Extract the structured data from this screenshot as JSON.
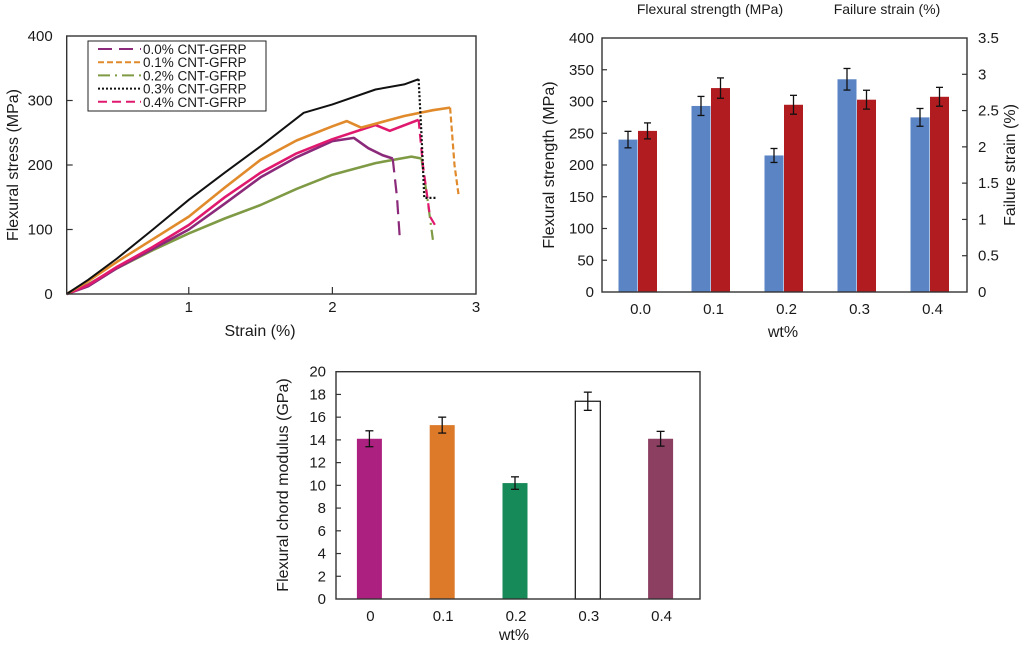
{
  "chart_data": [
    {
      "id": "stress-strain",
      "type": "line",
      "title": "",
      "xlabel": "Strain (%)",
      "ylabel": "Flexural stress (MPa)",
      "xlim": [
        0.15,
        3
      ],
      "ylim": [
        0,
        400
      ],
      "xticks": [
        1,
        2,
        3
      ],
      "xtick_labels": [
        "1",
        "2",
        "3"
      ],
      "yticks": [
        0,
        100,
        200,
        300,
        400
      ],
      "ytick_labels": [
        "0",
        "100",
        "200",
        "300",
        "400"
      ],
      "grid": false,
      "legend_position": "top-left",
      "series": [
        {
          "name": "0.0% CNT-GFRP",
          "color": "#8b2a7a",
          "dash": "long-dash",
          "x": [
            0.15,
            0.3,
            0.5,
            0.75,
            1.0,
            1.25,
            1.5,
            1.75,
            2.0,
            2.15,
            2.25,
            2.35,
            2.42,
            2.45,
            2.47
          ],
          "y": [
            0,
            12,
            40,
            70,
            100,
            140,
            181,
            212,
            237,
            242,
            226,
            215,
            210,
            150,
            84
          ]
        },
        {
          "name": "0.1% CNT-GFRP",
          "color": "#e08a2c",
          "dash": "short-dash",
          "x": [
            0.15,
            0.3,
            0.5,
            0.75,
            1.0,
            1.25,
            1.5,
            1.75,
            2.0,
            2.1,
            2.2,
            2.5,
            2.7,
            2.82,
            2.85,
            2.88
          ],
          "y": [
            0,
            20,
            50,
            85,
            120,
            165,
            208,
            238,
            260,
            268,
            258,
            276,
            285,
            289,
            200,
            151
          ]
        },
        {
          "name": "0.2% CNT-GFRP",
          "color": "#7f9a45",
          "dash": "dash-dot",
          "x": [
            0.15,
            0.3,
            0.5,
            0.75,
            1.0,
            1.25,
            1.5,
            1.75,
            2.0,
            2.3,
            2.55,
            2.62,
            2.66,
            2.7
          ],
          "y": [
            0,
            15,
            40,
            68,
            94,
            117,
            138,
            163,
            185,
            203,
            213,
            210,
            150,
            84
          ]
        },
        {
          "name": "0.3% CNT-GFRP",
          "color": "#111111",
          "dash": "dotted",
          "x": [
            0.15,
            0.3,
            0.5,
            0.75,
            1.0,
            1.25,
            1.5,
            1.8,
            2.0,
            2.3,
            2.5,
            2.6,
            2.62,
            2.64,
            2.73
          ],
          "y": [
            0,
            22,
            55,
            100,
            146,
            188,
            229,
            281,
            294,
            317,
            325,
            333,
            250,
            149,
            149
          ]
        },
        {
          "name": "0.4% CNT-GFRP",
          "color": "#e0196f",
          "dash": "medium-dash",
          "x": [
            0.15,
            0.3,
            0.5,
            0.75,
            1.0,
            1.25,
            1.5,
            1.75,
            2.0,
            2.3,
            2.4,
            2.6,
            2.63,
            2.68,
            2.72
          ],
          "y": [
            0,
            14,
            42,
            73,
            107,
            150,
            188,
            218,
            240,
            262,
            253,
            270,
            200,
            120,
            105
          ]
        }
      ]
    },
    {
      "id": "strength-strain-bars",
      "type": "bar",
      "title_left": "Flexural strength (MPa)",
      "title_right": "Failure strain (%)",
      "xlabel": "wt%",
      "ylabel_left": "Flexural strength (MPa)",
      "ylabel_right": "Failure strain (%)",
      "ylabel_left_color": "#5b84c4",
      "ylabel_right_color": "#b52024",
      "categories": [
        "0.0",
        "0.1",
        "0.2",
        "0.3",
        "0.4"
      ],
      "ylim_left": [
        0,
        400
      ],
      "ylim_right": [
        0,
        3.5
      ],
      "yticks_left": [
        "0",
        "50",
        "100",
        "150",
        "200",
        "250",
        "300",
        "350",
        "400"
      ],
      "yticks_right": [
        "0",
        "0.5",
        "1",
        "1.5",
        "2",
        "2.5",
        "3",
        "3.5"
      ],
      "grid": false,
      "series": [
        {
          "name": "Flexural strength (MPa)",
          "axis": "left",
          "color": "#5b84c4",
          "values": [
            240,
            293,
            215,
            335,
            275
          ],
          "errors": [
            13,
            15,
            11,
            17,
            14
          ]
        },
        {
          "name": "Failure strain (%)",
          "axis": "right",
          "color": "#b01c20",
          "values": [
            2.22,
            2.81,
            2.58,
            2.65,
            2.69
          ],
          "errors": [
            0.11,
            0.14,
            0.13,
            0.13,
            0.13
          ]
        }
      ]
    },
    {
      "id": "chord-modulus-bars",
      "type": "bar",
      "title": "",
      "xlabel": "wt%",
      "ylabel": "Flexural chord modulus (GPa)",
      "categories": [
        "0",
        "0.1",
        "0.2",
        "0.3",
        "0.4"
      ],
      "ylim": [
        0,
        20
      ],
      "yticks": [
        "0",
        "2",
        "4",
        "6",
        "8",
        "10",
        "12",
        "14",
        "16",
        "18",
        "20"
      ],
      "grid": false,
      "values": [
        14.1,
        15.3,
        10.2,
        17.4,
        14.1
      ],
      "errors": [
        0.7,
        0.7,
        0.55,
        0.8,
        0.65
      ],
      "colors": [
        "#ac2180",
        "#dc7a2a",
        "#178a5a",
        "#ffffff",
        "#8d3f62"
      ]
    }
  ]
}
